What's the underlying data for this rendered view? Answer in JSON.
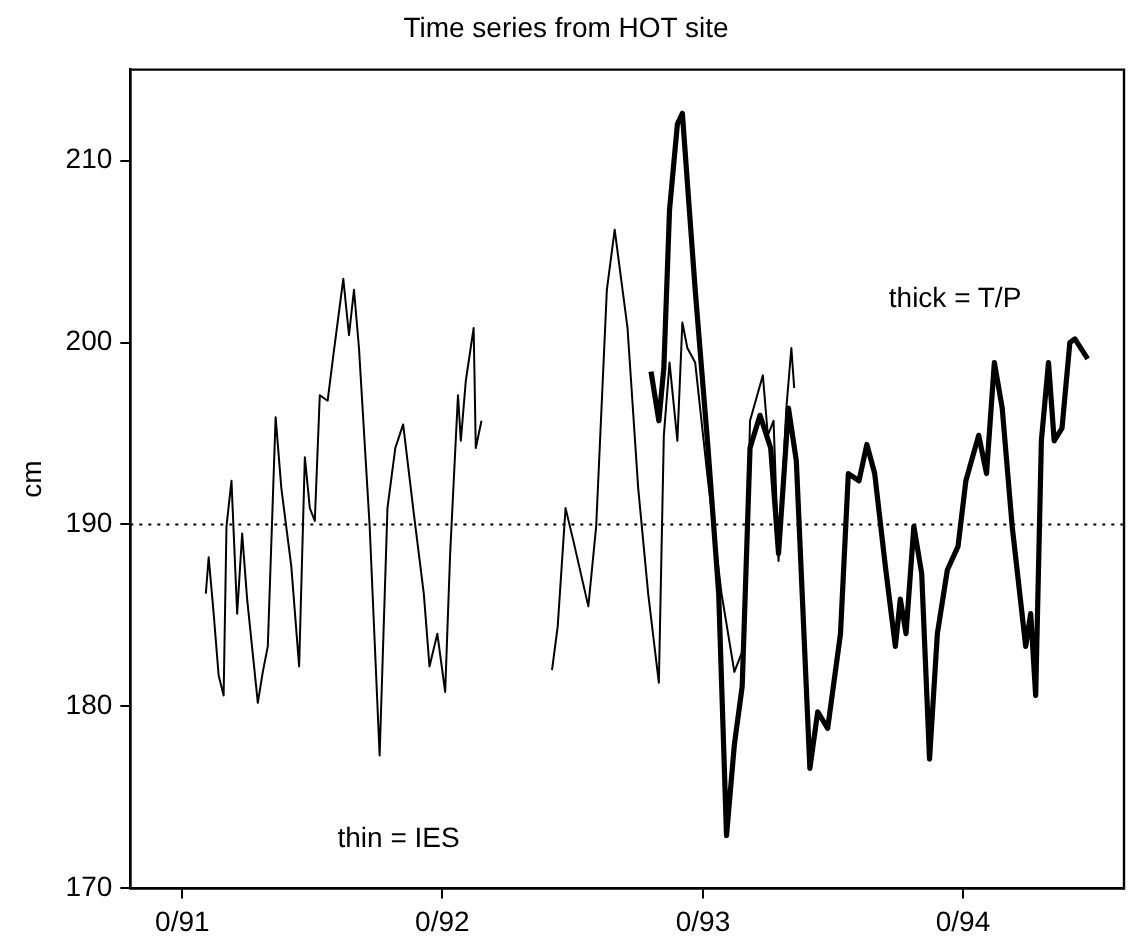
{
  "chart_data": {
    "type": "line",
    "title": "Time series from HOT site",
    "ylabel": "cm",
    "xlim": [
      "1990-10-20",
      "1994-08-15"
    ],
    "xticks": [
      {
        "value": "1991-01-01",
        "label": "0/91"
      },
      {
        "value": "1992-01-01",
        "label": "0/92"
      },
      {
        "value": "1993-01-01",
        "label": "0/93"
      },
      {
        "value": "1994-01-01",
        "label": "0/94"
      }
    ],
    "ylim": [
      170,
      215
    ],
    "yticks": [
      170,
      180,
      190,
      200,
      210
    ],
    "grid": false,
    "legend": false,
    "marker": "none",
    "line_style": "solid",
    "ref_lines": [
      {
        "axis": "y",
        "value": 190,
        "line_style": "dotted",
        "color": "#000000"
      }
    ],
    "annotations": [
      "thin = IES",
      "thick = T/P"
    ],
    "series": [
      {
        "color": "#000000",
        "x": [
          "1991-02-03",
          "1991-02-07",
          "1991-02-14",
          "1991-02-21",
          "1991-02-28",
          "1991-03-04",
          "1991-03-11",
          "1991-03-19",
          "1991-03-26",
          "1991-04-02",
          "1991-04-17",
          "1991-04-24",
          "1991-05-01",
          "1991-05-12",
          "1991-05-20",
          "1991-06-03",
          "1991-06-14",
          "1991-06-22",
          "1991-06-29",
          "1991-07-06",
          "1991-07-13",
          "1991-07-24",
          "1991-08-01",
          "1991-08-15",
          "1991-08-23",
          "1991-08-30",
          "1991-09-06",
          "1991-09-21",
          "1991-10-05",
          "1991-10-16",
          "1991-10-27",
          "1991-11-07",
          "1991-11-22",
          "1991-12-06",
          "1991-12-14",
          "1991-12-25",
          "1992-01-05",
          "1992-01-12",
          "1992-01-23",
          "1992-01-27",
          "1992-02-03",
          "1992-02-14",
          "1992-02-17",
          "1992-02-25",
          "1992-04-21",
          "1992-06-03",
          "1992-06-11",
          "1992-06-22",
          "1992-07-03",
          "1992-07-24",
          "1992-08-04",
          "1992-08-19",
          "1992-08-30",
          "1992-09-17",
          "1992-10-02",
          "1992-10-16",
          "1992-10-31",
          "1992-11-07",
          "1992-11-15",
          "1992-11-26",
          "1992-12-03",
          "1992-12-10",
          "1992-12-21",
          "1993-01-08",
          "1993-01-27",
          "1993-02-14",
          "1993-02-28",
          "1993-03-08",
          "1993-03-26",
          "1993-04-02",
          "1993-04-10",
          "1993-04-17",
          "1993-04-28",
          "1993-05-05",
          "1993-05-09"
        ],
        "values": [
          186.2,
          188.2,
          185.1,
          181.7,
          180.6,
          189.9,
          192.4,
          185.1,
          189.5,
          185.9,
          180.2,
          181.9,
          183.3,
          195.9,
          192.0,
          187.7,
          182.2,
          193.7,
          190.9,
          190.2,
          197.1,
          196.8,
          199.3,
          203.5,
          200.4,
          202.9,
          199.7,
          189.9,
          177.3,
          190.9,
          194.2,
          195.5,
          190.6,
          186.2,
          182.2,
          184.0,
          180.8,
          188.4,
          197.1,
          194.6,
          197.9,
          200.8,
          194.2,
          195.7,
          null,
          182.0,
          184.4,
          190.9,
          189.1,
          185.5,
          189.9,
          202.9,
          206.2,
          200.8,
          192.0,
          186.2,
          181.3,
          194.9,
          198.9,
          194.6,
          201.1,
          199.7,
          198.9,
          192.4,
          186.2,
          181.9,
          183.3,
          195.7,
          198.2,
          194.9,
          195.7,
          188.0,
          196.4,
          199.7,
          197.5
        ]
      },
      {
        "color": "#000000",
        "x": [
          "1992-10-20",
          "1992-10-31",
          "1992-11-07",
          "1992-11-15",
          "1992-11-26",
          "1992-12-03",
          "1992-12-10",
          "1992-12-21",
          "1993-01-08",
          "1993-01-23",
          "1993-02-03",
          "1993-02-14",
          "1993-02-25",
          "1993-03-08",
          "1993-03-22",
          "1993-04-06",
          "1993-04-17",
          "1993-05-01",
          "1993-05-12",
          "1993-05-31",
          "1993-06-11",
          "1993-06-25",
          "1993-07-13",
          "1993-07-24",
          "1993-08-08",
          "1993-08-19",
          "1993-08-30",
          "1993-09-14",
          "1993-09-28",
          "1993-10-05",
          "1993-10-13",
          "1993-10-24",
          "1993-11-04",
          "1993-11-15",
          "1993-11-26",
          "1993-12-10",
          "1993-12-25",
          "1994-01-05",
          "1994-01-23",
          "1994-02-03",
          "1994-02-14",
          "1994-02-25",
          "1994-03-11",
          "1994-03-30",
          "1994-04-06",
          "1994-04-13",
          "1994-04-21",
          "1994-05-01",
          "1994-05-09",
          "1994-05-20",
          "1994-05-31",
          "1994-06-07",
          "1994-06-25"
        ],
        "values": [
          198.4,
          195.7,
          198.6,
          207.3,
          212.0,
          212.6,
          208.8,
          202.9,
          194.2,
          186.2,
          172.9,
          177.9,
          181.1,
          194.2,
          196.0,
          194.2,
          188.4,
          196.4,
          193.5,
          176.6,
          179.7,
          178.8,
          184.0,
          192.8,
          192.4,
          194.4,
          192.8,
          187.7,
          183.3,
          185.9,
          184.0,
          189.9,
          187.3,
          177.1,
          184.0,
          187.5,
          188.8,
          192.4,
          194.9,
          192.8,
          198.9,
          196.4,
          189.9,
          183.3,
          185.1,
          180.6,
          194.6,
          198.9,
          194.6,
          195.3,
          200.0,
          200.2,
          199.1
        ]
      }
    ]
  }
}
